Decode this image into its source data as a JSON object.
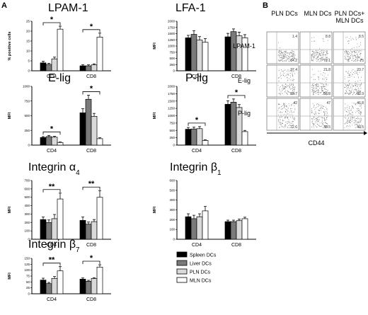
{
  "panels": {
    "a": "A",
    "b": "B"
  },
  "chart_data": [
    {
      "type": "bar",
      "title": "LPAM-1",
      "ylabel": "% positive cells",
      "ylim": [
        0,
        25
      ],
      "yticks": [
        0,
        5,
        10,
        15,
        20,
        25
      ],
      "groups": [
        "CD4",
        "CD8"
      ],
      "series": [
        {
          "name": "Spleen DCs",
          "values": [
            4,
            2.5
          ],
          "errors": [
            0.8,
            0.5
          ]
        },
        {
          "name": "Liver DCs",
          "values": [
            3.2,
            2.5
          ],
          "errors": [
            0.6,
            0.5
          ]
        },
        {
          "name": "PLN DCs",
          "values": [
            6,
            3
          ],
          "errors": [
            0.9,
            0.5
          ]
        },
        {
          "name": "MLN DCs",
          "values": [
            21,
            17
          ],
          "errors": [
            1.5,
            2
          ]
        }
      ],
      "sig": [
        {
          "group": 0,
          "from": 0,
          "to": 3,
          "label": "*"
        },
        {
          "group": 1,
          "from": 0,
          "to": 3,
          "label": "*"
        }
      ]
    },
    {
      "type": "bar",
      "title": "LFA-1",
      "ylabel": "MFI",
      "ylim": [
        0,
        2000
      ],
      "yticks": [
        0,
        250,
        500,
        750,
        1000,
        1250,
        1500,
        1750,
        2000
      ],
      "groups": [
        "CD4",
        "CD8"
      ],
      "series": [
        {
          "name": "Spleen DCs",
          "values": [
            1330,
            1370
          ],
          "errors": [
            100,
            140
          ]
        },
        {
          "name": "Liver DCs",
          "values": [
            1470,
            1580
          ],
          "errors": [
            150,
            110
          ]
        },
        {
          "name": "PLN DCs",
          "values": [
            1240,
            1410
          ],
          "errors": [
            140,
            150
          ]
        },
        {
          "name": "MLN DCs",
          "values": [
            1150,
            1330
          ],
          "errors": [
            150,
            130
          ]
        }
      ],
      "sig": []
    },
    {
      "type": "bar",
      "title": "E-lig",
      "ylabel": "MFI",
      "ylim": [
        0,
        1000
      ],
      "yticks": [
        0,
        250,
        500,
        750,
        1000
      ],
      "groups": [
        "CD4",
        "CD8"
      ],
      "series": [
        {
          "name": "Spleen DCs",
          "values": [
            130,
            550
          ],
          "errors": [
            15,
            70
          ]
        },
        {
          "name": "Liver DCs",
          "values": [
            145,
            780
          ],
          "errors": [
            20,
            70
          ]
        },
        {
          "name": "PLN DCs",
          "values": [
            135,
            490
          ],
          "errors": [
            15,
            50
          ]
        },
        {
          "name": "MLN DCs",
          "values": [
            45,
            110
          ],
          "errors": [
            8,
            15
          ]
        }
      ],
      "sig": [
        {
          "group": 0,
          "from": 0,
          "to": 3,
          "label": "*"
        },
        {
          "group": 1,
          "from": 0,
          "to": 3,
          "label": "*"
        }
      ]
    },
    {
      "type": "bar",
      "title": "P-lig",
      "ylabel": "MFI",
      "ylim": [
        0,
        2000
      ],
      "yticks": [
        0,
        250,
        500,
        750,
        1000,
        1250,
        1500,
        1750,
        2000
      ],
      "groups": [
        "CD4",
        "CD8"
      ],
      "series": [
        {
          "name": "Spleen DCs",
          "values": [
            540,
            1390
          ],
          "errors": [
            60,
            120
          ]
        },
        {
          "name": "Liver DCs",
          "values": [
            550,
            1460
          ],
          "errors": [
            60,
            110
          ]
        },
        {
          "name": "PLN DCs",
          "values": [
            560,
            1280
          ],
          "errors": [
            70,
            100
          ]
        },
        {
          "name": "MLN DCs",
          "values": [
            160,
            460
          ],
          "errors": [
            20,
            40
          ]
        }
      ],
      "sig": [
        {
          "group": 0,
          "from": 0,
          "to": 3,
          "label": "*"
        },
        {
          "group": 1,
          "from": 0,
          "to": 3,
          "label": "*"
        }
      ]
    },
    {
      "type": "bar",
      "title": "Integrin α",
      "title_sub": "4",
      "ylabel": "MFI",
      "ylim": [
        0,
        700
      ],
      "yticks": [
        0,
        100,
        200,
        300,
        400,
        500,
        600,
        700
      ],
      "groups": [
        "CD4",
        "CD8"
      ],
      "series": [
        {
          "name": "Spleen DCs",
          "values": [
            235,
            225
          ],
          "errors": [
            30,
            40
          ]
        },
        {
          "name": "Liver DCs",
          "values": [
            200,
            180
          ],
          "errors": [
            30,
            25
          ]
        },
        {
          "name": "PLN DCs",
          "values": [
            245,
            210
          ],
          "errors": [
            50,
            25
          ]
        },
        {
          "name": "MLN DCs",
          "values": [
            480,
            500
          ],
          "errors": [
            70,
            80
          ]
        }
      ],
      "sig": [
        {
          "group": 0,
          "from": 0,
          "to": 3,
          "label": "**"
        },
        {
          "group": 1,
          "from": 0,
          "to": 3,
          "label": "**"
        }
      ]
    },
    {
      "type": "bar",
      "title": "Integrin β",
      "title_sub": "1",
      "ylabel": "MFI",
      "ylim": [
        0,
        600
      ],
      "yticks": [
        0,
        100,
        200,
        300,
        400,
        500,
        600
      ],
      "groups": [
        "CD4",
        "CD8"
      ],
      "series": [
        {
          "name": "Spleen DCs",
          "values": [
            230,
            180
          ],
          "errors": [
            30,
            15
          ]
        },
        {
          "name": "Liver DCs",
          "values": [
            210,
            180
          ],
          "errors": [
            35,
            15
          ]
        },
        {
          "name": "PLN DCs",
          "values": [
            230,
            190
          ],
          "errors": [
            30,
            15
          ]
        },
        {
          "name": "MLN DCs",
          "values": [
            290,
            210
          ],
          "errors": [
            45,
            15
          ]
        }
      ],
      "sig": []
    },
    {
      "type": "bar",
      "title": "Integrin β",
      "title_sub": "7",
      "ylabel": "MFI",
      "ylim": [
        0,
        150
      ],
      "yticks": [
        0,
        25,
        50,
        75,
        100,
        125,
        150
      ],
      "groups": [
        "CD4",
        "CD8"
      ],
      "series": [
        {
          "name": "Spleen DCs",
          "values": [
            58,
            62
          ],
          "errors": [
            8,
            5
          ]
        },
        {
          "name": "Liver DCs",
          "values": [
            43,
            53
          ],
          "errors": [
            5,
            4
          ]
        },
        {
          "name": "PLN DCs",
          "values": [
            65,
            65
          ],
          "errors": [
            8,
            3
          ]
        },
        {
          "name": "MLN DCs",
          "values": [
            97,
            113
          ],
          "errors": [
            18,
            10
          ]
        }
      ],
      "sig": [
        {
          "group": 0,
          "from": 0,
          "to": 3,
          "label": "**"
        },
        {
          "group": 1,
          "from": 0,
          "to": 3,
          "label": "*"
        }
      ]
    }
  ],
  "legend": [
    {
      "label": "Spleen DCs",
      "color": "#000000"
    },
    {
      "label": "Liver DCs",
      "color": "#7a7a7a"
    },
    {
      "label": "PLN DCs",
      "color": "#d9d9d9"
    },
    {
      "label": "MLN DCs",
      "color": "#ffffff"
    }
  ],
  "flow": {
    "columns": [
      "PLN DCs",
      "MLN DCs",
      "PLN DCs+\nMLN DCs"
    ],
    "rows": [
      "LPAM-1",
      "E-lig",
      "P-lig"
    ],
    "xlabel": "CD44",
    "quadrants": [
      [
        [
          "1.4",
          "64.2"
        ],
        [
          "8.8",
          "77.1"
        ],
        [
          "8.5",
          "75"
        ]
      ],
      [
        [
          "37.4",
          "28.7"
        ],
        [
          "21.8",
          "56.8"
        ],
        [
          "23.7",
          "50.9"
        ]
      ],
      [
        [
          "42",
          "22.6"
        ],
        [
          "47",
          "38.5"
        ],
        [
          "46.8",
          "40.5"
        ]
      ]
    ]
  }
}
